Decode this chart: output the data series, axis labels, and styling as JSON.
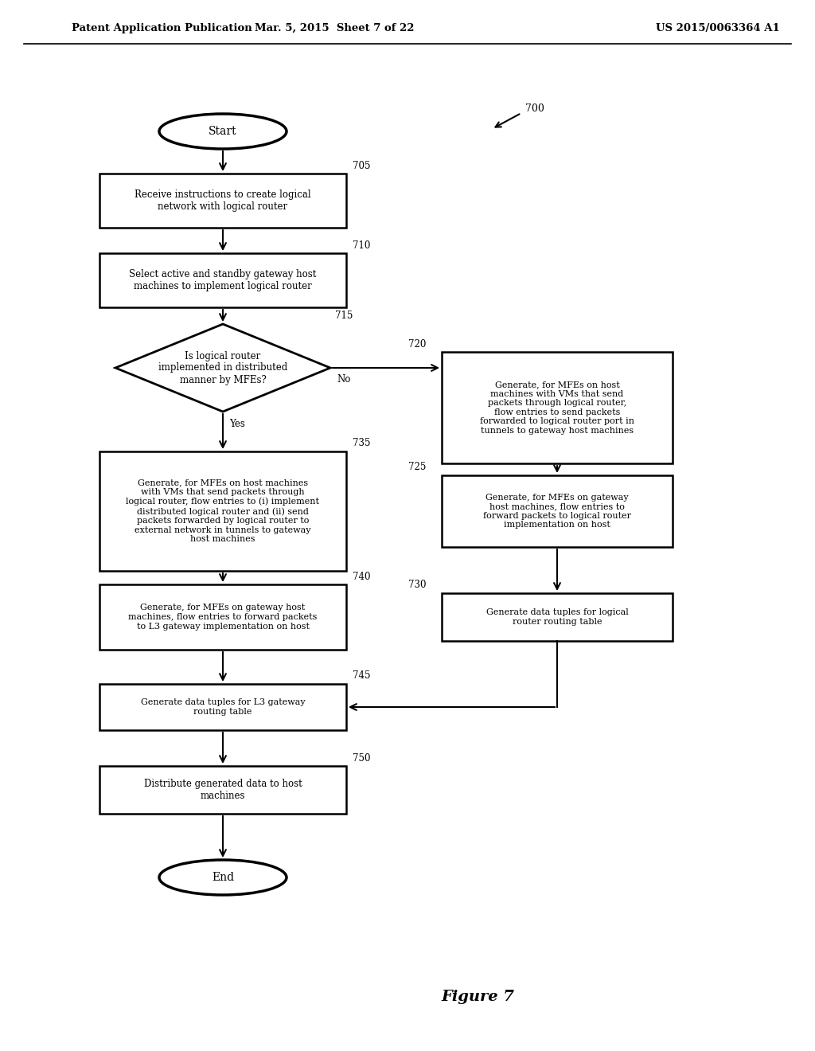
{
  "header_left": "Patent Application Publication",
  "header_mid": "Mar. 5, 2015  Sheet 7 of 22",
  "header_right": "US 2015/0063364 A1",
  "figure_label": "Figure 7",
  "diagram_label": "700",
  "bg_color": "#ffffff",
  "start_text": "Start",
  "end_text": "End",
  "n705_text": "Receive instructions to create logical\nnetwork with logical router",
  "n705_label": "705",
  "n710_text": "Select active and standby gateway host\nmachines to implement logical router",
  "n710_label": "710",
  "n715_text": "Is logical router\nimplemented in distributed\nmanner by MFEs?",
  "n715_label": "715",
  "n720_text": "Generate, for MFEs on host\nmachines with VMs that send\npackets through logical router,\nflow entries to send packets\nforwarded to logical router port in\ntunnels to gateway host machines",
  "n720_label": "720",
  "n735_text": "Generate, for MFEs on host machines\nwith VMs that send packets through\nlogical router, flow entries to (i) implement\ndistributed logical router and (ii) send\npackets forwarded by logical router to\nexternal network in tunnels to gateway\nhost machines",
  "n735_label": "735",
  "n725_text": "Generate, for MFEs on gateway\nhost machines, flow entries to\nforward packets to logical router\nimplementation on host",
  "n725_label": "725",
  "n740_text": "Generate, for MFEs on gateway host\nmachines, flow entries to forward packets\nto L3 gateway implementation on host",
  "n740_label": "740",
  "n730_text": "Generate data tuples for logical\nrouter routing table",
  "n730_label": "730",
  "n745_text": "Generate data tuples for L3 gateway\nrouting table",
  "n745_label": "745",
  "n750_text": "Distribute generated data to host\nmachines",
  "n750_label": "750",
  "yes_label": "Yes",
  "no_label": "No"
}
